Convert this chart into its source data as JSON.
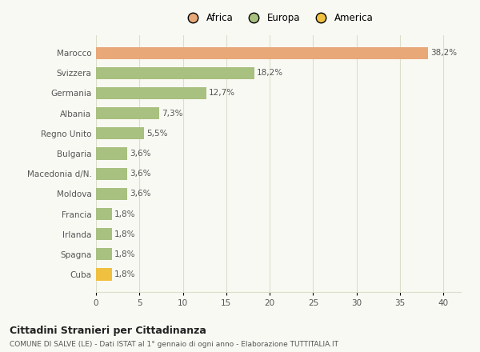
{
  "categories": [
    "Cuba",
    "Spagna",
    "Irlanda",
    "Francia",
    "Moldova",
    "Macedonia d/N.",
    "Bulgaria",
    "Regno Unito",
    "Albania",
    "Germania",
    "Svizzera",
    "Marocco"
  ],
  "values": [
    1.8,
    1.8,
    1.8,
    1.8,
    3.6,
    3.6,
    3.6,
    5.5,
    7.3,
    12.7,
    18.2,
    38.2
  ],
  "colors": [
    "#f0c040",
    "#a8c080",
    "#a8c080",
    "#a8c080",
    "#a8c080",
    "#a8c080",
    "#a8c080",
    "#a8c080",
    "#a8c080",
    "#a8c080",
    "#a8c080",
    "#e8a878"
  ],
  "labels": [
    "1,8%",
    "1,8%",
    "1,8%",
    "1,8%",
    "3,6%",
    "3,6%",
    "3,6%",
    "5,5%",
    "7,3%",
    "12,7%",
    "18,2%",
    "38,2%"
  ],
  "legend": [
    {
      "label": "Africa",
      "color": "#e8a878"
    },
    {
      "label": "Europa",
      "color": "#a8c080"
    },
    {
      "label": "America",
      "color": "#f0c040"
    }
  ],
  "xlim": [
    0,
    42
  ],
  "xticks": [
    0,
    5,
    10,
    15,
    20,
    25,
    30,
    35,
    40
  ],
  "title": "Cittadini Stranieri per Cittadinanza",
  "subtitle": "COMUNE DI SALVE (LE) - Dati ISTAT al 1° gennaio di ogni anno - Elaborazione TUTTITALIA.IT",
  "bg_color": "#f9f9f4",
  "grid_color": "#ddddcc",
  "bar_label_fontsize": 7.5,
  "tick_fontsize": 7.5,
  "legend_fontsize": 8.5,
  "title_fontsize": 9,
  "subtitle_fontsize": 6.5
}
